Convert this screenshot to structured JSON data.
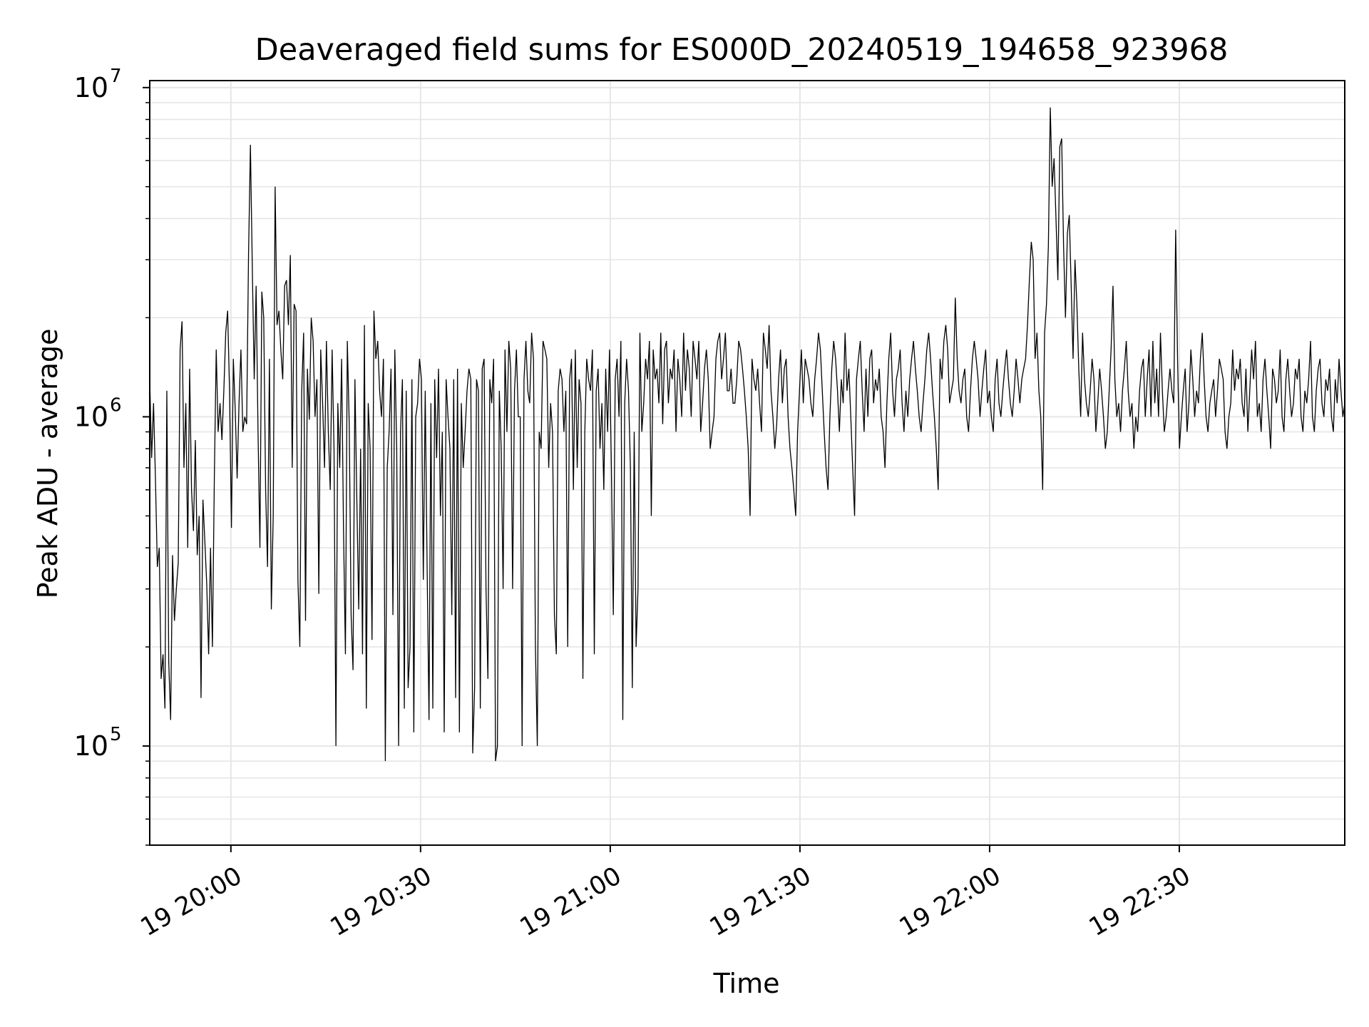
{
  "chart_data": {
    "type": "line",
    "title": "Deaveraged field sums for ES000D_20240519_194658_923968",
    "xlabel": "Time",
    "ylabel": "Peak ADU - average",
    "yscale": "log",
    "ylim": [
      50000,
      10500000
    ],
    "xlim": [
      "2024-05-19 19:47:10",
      "2024-05-19 22:56:10"
    ],
    "grid": true,
    "line_color": "#000000",
    "grid_color": "#e6e6e6",
    "x_ticks": [
      {
        "t": "2024-05-19 20:00",
        "label": "19 20:00"
      },
      {
        "t": "2024-05-19 20:30",
        "label": "19 20:30"
      },
      {
        "t": "2024-05-19 21:00",
        "label": "19 21:00"
      },
      {
        "t": "2024-05-19 21:30",
        "label": "19 21:30"
      },
      {
        "t": "2024-05-19 22:00",
        "label": "19 22:00"
      },
      {
        "t": "2024-05-19 22:30",
        "label": "19 22:30"
      }
    ],
    "y_ticks": [
      {
        "v": 100000,
        "base": "10",
        "exp": "5"
      },
      {
        "v": 1000000,
        "base": "10",
        "exp": "6"
      },
      {
        "v": 10000000,
        "base": "10",
        "exp": "7"
      }
    ],
    "series": [
      {
        "x_start": "2024-05-19 19:47:10",
        "x_end": "2024-05-19 22:56:10",
        "values": [
          1300000,
          750000,
          1100000,
          650000,
          350000,
          400000,
          160000,
          190000,
          130000,
          1200000,
          180000,
          120000,
          380000,
          240000,
          300000,
          360000,
          1600000,
          1950000,
          700000,
          1100000,
          400000,
          1400000,
          600000,
          450000,
          850000,
          380000,
          500000,
          140000,
          560000,
          420000,
          310000,
          190000,
          400000,
          200000,
          650000,
          1600000,
          900000,
          1100000,
          850000,
          1200000,
          1800000,
          2100000,
          1200000,
          460000,
          1500000,
          1050000,
          650000,
          1100000,
          1600000,
          900000,
          1000000,
          950000,
          3100000,
          6700000,
          2800000,
          1300000,
          2500000,
          900000,
          400000,
          2400000,
          2000000,
          600000,
          350000,
          1500000,
          260000,
          500000,
          5000000,
          1900000,
          2100000,
          1600000,
          1300000,
          2500000,
          2600000,
          1900000,
          3100000,
          700000,
          2200000,
          2100000,
          320000,
          200000,
          1200000,
          1800000,
          240000,
          1400000,
          980000,
          2000000,
          1700000,
          1000000,
          1300000,
          290000,
          1600000,
          1100000,
          700000,
          1700000,
          900000,
          600000,
          1600000,
          800000,
          100000,
          1100000,
          700000,
          1500000,
          450000,
          190000,
          1700000,
          950000,
          250000,
          170000,
          1300000,
          560000,
          260000,
          800000,
          190000,
          1900000,
          130000,
          1100000,
          800000,
          210000,
          2100000,
          1500000,
          1700000,
          1200000,
          1000000,
          1500000,
          90000,
          700000,
          900000,
          1400000,
          250000,
          1600000,
          800000,
          100000,
          900000,
          1300000,
          130000,
          1200000,
          150000,
          200000,
          1300000,
          110000,
          1000000,
          1100000,
          1500000,
          1300000,
          320000,
          1200000,
          350000,
          120000,
          1100000,
          130000,
          1300000,
          750000,
          1400000,
          500000,
          900000,
          110000,
          1300000,
          1000000,
          800000,
          250000,
          1300000,
          140000,
          1400000,
          110000,
          1100000,
          700000,
          900000,
          1200000,
          1400000,
          1300000,
          95000,
          150000,
          1300000,
          1200000,
          130000,
          1400000,
          1500000,
          300000,
          160000,
          1300000,
          1100000,
          1500000,
          90000,
          100000,
          1200000,
          800000,
          300000,
          1600000,
          900000,
          1700000,
          1400000,
          300000,
          1200000,
          1600000,
          1000000,
          1000000,
          100000,
          1300000,
          1700000,
          1200000,
          1100000,
          1800000,
          1500000,
          200000,
          100000,
          900000,
          800000,
          1700000,
          1600000,
          1500000,
          700000,
          1100000,
          900000,
          250000,
          190000,
          1200000,
          1400000,
          1300000,
          900000,
          1200000,
          200000,
          1300000,
          1500000,
          600000,
          1600000,
          700000,
          1300000,
          1100000,
          160000,
          900000,
          1500000,
          1300000,
          1200000,
          1600000,
          190000,
          1200000,
          1400000,
          800000,
          1100000,
          600000,
          1400000,
          900000,
          1600000,
          700000,
          250000,
          1300000,
          1500000,
          1000000,
          1700000,
          120000,
          1100000,
          1500000,
          1200000,
          700000,
          150000,
          900000,
          200000,
          300000,
          1800000,
          900000,
          1100000,
          1500000,
          1300000,
          1700000,
          500000,
          1600000,
          1300000,
          1400000,
          1100000,
          1800000,
          950000,
          1600000,
          1700000,
          1100000,
          1400000,
          1300000,
          1600000,
          900000,
          1500000,
          1300000,
          1000000,
          1800000,
          1200000,
          1600000,
          1400000,
          1000000,
          1700000,
          1500000,
          1300000,
          1700000,
          900000,
          1100000,
          1400000,
          1600000,
          1300000,
          800000,
          900000,
          1000000,
          1500000,
          1700000,
          1800000,
          1300000,
          1500000,
          1800000,
          1200000,
          1200000,
          1400000,
          1100000,
          1100000,
          1300000,
          1700000,
          1600000,
          1400000,
          1200000,
          1000000,
          800000,
          500000,
          1500000,
          1300000,
          1200000,
          1400000,
          1100000,
          900000,
          1800000,
          1600000,
          1400000,
          1900000,
          1200000,
          1000000,
          800000,
          950000,
          1300000,
          1600000,
          1100000,
          1400000,
          1500000,
          1000000,
          800000,
          700000,
          600000,
          500000,
          900000,
          1200000,
          1600000,
          1100000,
          1500000,
          1400000,
          1300000,
          1100000,
          1000000,
          1300000,
          1500000,
          1800000,
          1600000,
          1200000,
          900000,
          700000,
          600000,
          1000000,
          1400000,
          1700000,
          1500000,
          1200000,
          900000,
          1300000,
          1100000,
          1800000,
          1200000,
          1400000,
          1000000,
          700000,
          500000,
          1300000,
          1500000,
          1700000,
          1200000,
          900000,
          1400000,
          1000000,
          1500000,
          1600000,
          1100000,
          1300000,
          1200000,
          1400000,
          1000000,
          900000,
          700000,
          1100000,
          1500000,
          1800000,
          1200000,
          1000000,
          1300000,
          1400000,
          1600000,
          1100000,
          900000,
          1200000,
          1000000,
          1300000,
          1500000,
          1700000,
          1400000,
          1200000,
          1000000,
          900000,
          1100000,
          1300000,
          1600000,
          1800000,
          1500000,
          1200000,
          1000000,
          800000,
          600000,
          1500000,
          1300000,
          1700000,
          1900000,
          1600000,
          1100000,
          1200000,
          1300000,
          2300000,
          1500000,
          1200000,
          1100000,
          1300000,
          1400000,
          1000000,
          900000,
          1200000,
          1500000,
          1700000,
          1500000,
          1300000,
          1000000,
          1200000,
          1400000,
          1600000,
          1100000,
          1200000,
          1000000,
          900000,
          1300000,
          1500000,
          1100000,
          1000000,
          1200000,
          1400000,
          1600000,
          1300000,
          1100000,
          1000000,
          1200000,
          1500000,
          1300000,
          1100000,
          1300000,
          1400000,
          1500000,
          1900000,
          2600000,
          3400000,
          3000000,
          1500000,
          1800000,
          1200000,
          1000000,
          600000,
          1800000,
          2200000,
          3300000,
          8700000,
          5000000,
          6100000,
          4000000,
          2600000,
          6600000,
          7000000,
          3300000,
          2000000,
          3600000,
          4100000,
          2500000,
          1500000,
          3000000,
          2200000,
          1400000,
          1000000,
          1800000,
          1300000,
          1100000,
          1000000,
          1200000,
          1500000,
          1300000,
          900000,
          1100000,
          1400000,
          1200000,
          1000000,
          800000,
          900000,
          1200000,
          1600000,
          2500000,
          1300000,
          1000000,
          1100000,
          900000,
          1200000,
          1400000,
          1700000,
          1200000,
          1000000,
          1100000,
          800000,
          1000000,
          900000,
          1200000,
          1400000,
          1500000,
          1000000,
          1300000,
          1600000,
          1000000,
          1700000,
          1100000,
          1400000,
          1000000,
          1800000,
          1200000,
          900000,
          1000000,
          1200000,
          1400000,
          1200000,
          1100000,
          3700000,
          1500000,
          800000,
          1000000,
          1200000,
          1400000,
          900000,
          1100000,
          1600000,
          1300000,
          1000000,
          1200000,
          1100000,
          1500000,
          1800000,
          1300000,
          1000000,
          900000,
          1100000,
          1200000,
          1300000,
          1000000,
          1200000,
          1500000,
          1400000,
          1300000,
          900000,
          800000,
          1000000,
          1100000,
          1600000,
          1200000,
          1400000,
          1300000,
          1500000,
          1100000,
          1000000,
          1400000,
          900000,
          1200000,
          1600000,
          1300000,
          1700000,
          1000000,
          1100000,
          900000,
          1300000,
          1500000,
          1200000,
          1000000,
          800000,
          1400000,
          1300000,
          1100000,
          1200000,
          1600000,
          1000000,
          900000,
          1300000,
          1500000,
          1200000,
          1000000,
          1100000,
          1400000,
          1300000,
          1500000,
          1000000,
          900000,
          1200000,
          1100000,
          1300000,
          1700000,
          1000000,
          900000,
          1200000,
          1400000,
          1500000,
          1100000,
          1000000,
          1300000,
          1200000,
          1400000,
          1000000,
          900000,
          1300000,
          1100000,
          1500000,
          1200000,
          1000000,
          1100000
        ]
      }
    ]
  }
}
